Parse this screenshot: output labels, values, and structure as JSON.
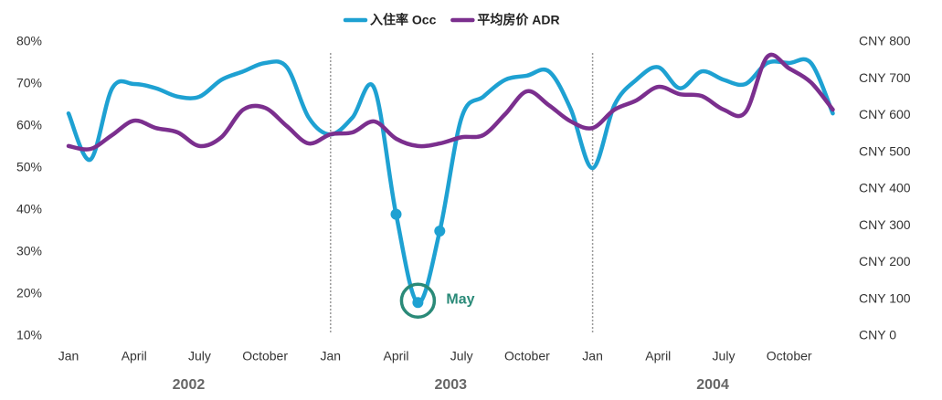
{
  "chart_data": {
    "type": "line",
    "categories": [
      "Jan",
      null,
      null,
      "April",
      null,
      null,
      "July",
      null,
      null,
      "October",
      null,
      null,
      "Jan",
      null,
      null,
      "April",
      null,
      null,
      "July",
      null,
      null,
      "October",
      null,
      null,
      "Jan",
      null,
      null,
      "April",
      null,
      null,
      "July",
      null,
      null,
      "October",
      null,
      null
    ],
    "year_labels": [
      "2002",
      "2003",
      "2004"
    ],
    "series": [
      {
        "name": "入住率 Occ",
        "color": "#1ea1d2",
        "axis": "y",
        "values": [
          63,
          52,
          69,
          70,
          69,
          67,
          67,
          71,
          73,
          75,
          74,
          62,
          58,
          62,
          69,
          39,
          18,
          35,
          62,
          67,
          71,
          72,
          73,
          64,
          50,
          65,
          71,
          74,
          69,
          73,
          71,
          70,
          75,
          75,
          75,
          63
        ],
        "markers": [
          15,
          16,
          17
        ]
      },
      {
        "name": "平均房价 ADR",
        "color": "#7b2f8e",
        "axis": "y2",
        "values": [
          517,
          509,
          547,
          586,
          566,
          554,
          517,
          541,
          616,
          621,
          571,
          524,
          549,
          554,
          584,
          537,
          517,
          524,
          541,
          547,
          604,
          666,
          628,
          584,
          566,
          616,
          641,
          678,
          658,
          653,
          616,
          609,
          760,
          728,
          690,
          616
        ]
      }
    ],
    "annotation": {
      "text": "May",
      "series": 0,
      "at": 16,
      "color": "#2a8a78"
    },
    "ylim": [
      10,
      80
    ],
    "yticks": [
      {
        "value": 10,
        "label": "10%"
      },
      {
        "value": 20,
        "label": "20%"
      },
      {
        "value": 30,
        "label": "30%"
      },
      {
        "value": 40,
        "label": "40%"
      },
      {
        "value": 50,
        "label": "50%"
      },
      {
        "value": 60,
        "label": "60%"
      },
      {
        "value": 70,
        "label": "70%"
      },
      {
        "value": 80,
        "label": "80%"
      }
    ],
    "y2lim": [
      0,
      800
    ],
    "y2ticks": [
      {
        "value": 0,
        "label": "CNY 0"
      },
      {
        "value": 100,
        "label": "CNY 100"
      },
      {
        "value": 200,
        "label": "CNY 200"
      },
      {
        "value": 300,
        "label": "CNY 300"
      },
      {
        "value": 400,
        "label": "CNY 400"
      },
      {
        "value": 500,
        "label": "CNY 500"
      },
      {
        "value": 600,
        "label": "CNY 600"
      },
      {
        "value": 700,
        "label": "CNY 700"
      },
      {
        "value": 800,
        "label": "CNY 800"
      }
    ],
    "grid": false,
    "legend": "top"
  }
}
